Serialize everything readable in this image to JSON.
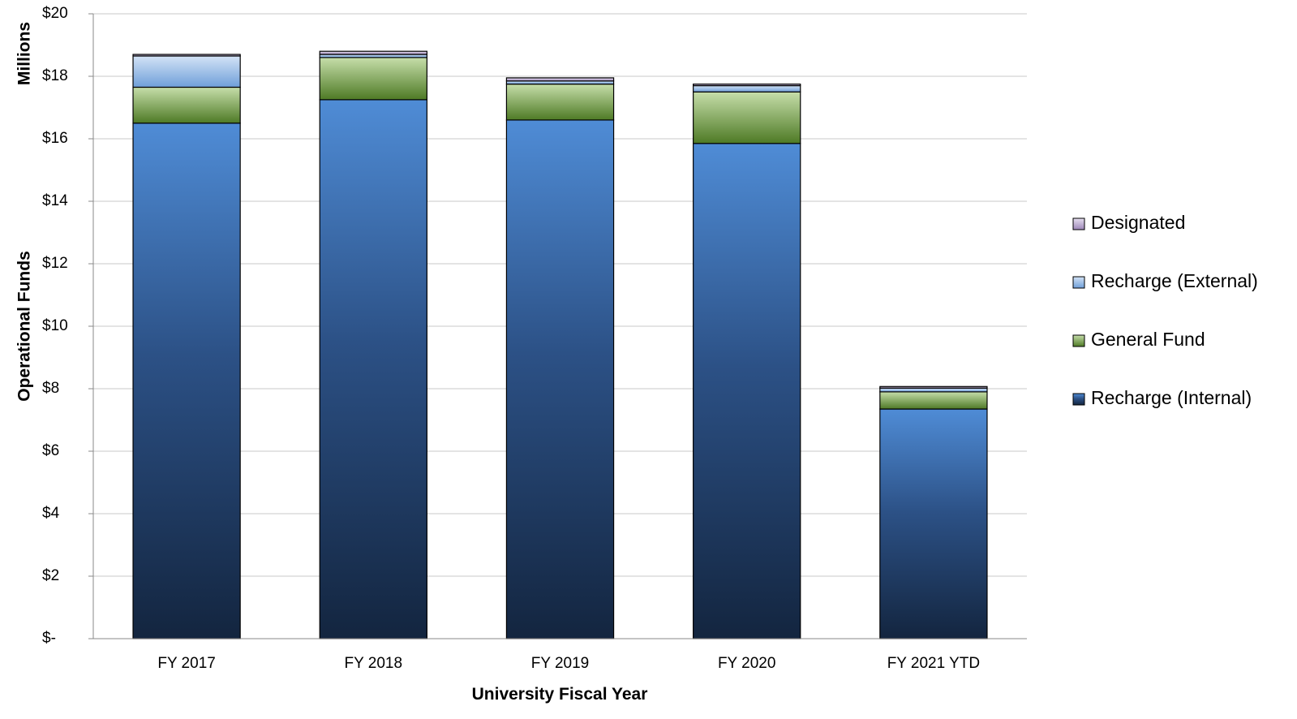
{
  "chart_data": {
    "type": "bar",
    "stacked": true,
    "categories": [
      "FY 2017",
      "FY 2018",
      "FY 2019",
      "FY 2020",
      "FY 2021 YTD"
    ],
    "series": [
      {
        "name": "Recharge (Internal)",
        "values": [
          16.5,
          17.25,
          16.6,
          15.85,
          7.35
        ]
      },
      {
        "name": "General Fund",
        "values": [
          1.15,
          1.35,
          1.15,
          1.65,
          0.55
        ]
      },
      {
        "name": "Recharge (External)",
        "values": [
          1.0,
          0.1,
          0.1,
          0.2,
          0.12
        ]
      },
      {
        "name": "Designated",
        "values": [
          0.05,
          0.1,
          0.1,
          0.05,
          0.05
        ]
      }
    ],
    "xlabel": "University Fiscal Year",
    "ylabel": "Operational Funds",
    "y_unit_label": "Millions",
    "ylim": [
      0,
      20
    ],
    "yticks": [
      0,
      2,
      4,
      6,
      8,
      10,
      12,
      14,
      16,
      18,
      20
    ],
    "ytick_labels": [
      "$-",
      "$2",
      "$4",
      "$6",
      "$8",
      "$10",
      "$12",
      "$14",
      "$16",
      "$18",
      "$20"
    ],
    "grid": true,
    "legend_position": "right",
    "legend_order": [
      "Designated",
      "Recharge (External)",
      "General Fund",
      "Recharge (Internal)"
    ],
    "colors": {
      "Recharge (Internal)": [
        "#4f8cd6",
        "#13253f"
      ],
      "General Fund": [
        "#c6deaa",
        "#4e7a25"
      ],
      "Recharge (External)": [
        "#d3e3f6",
        "#6f9fd9"
      ],
      "Designated": [
        "#e6dff0",
        "#9d86b8"
      ]
    }
  }
}
